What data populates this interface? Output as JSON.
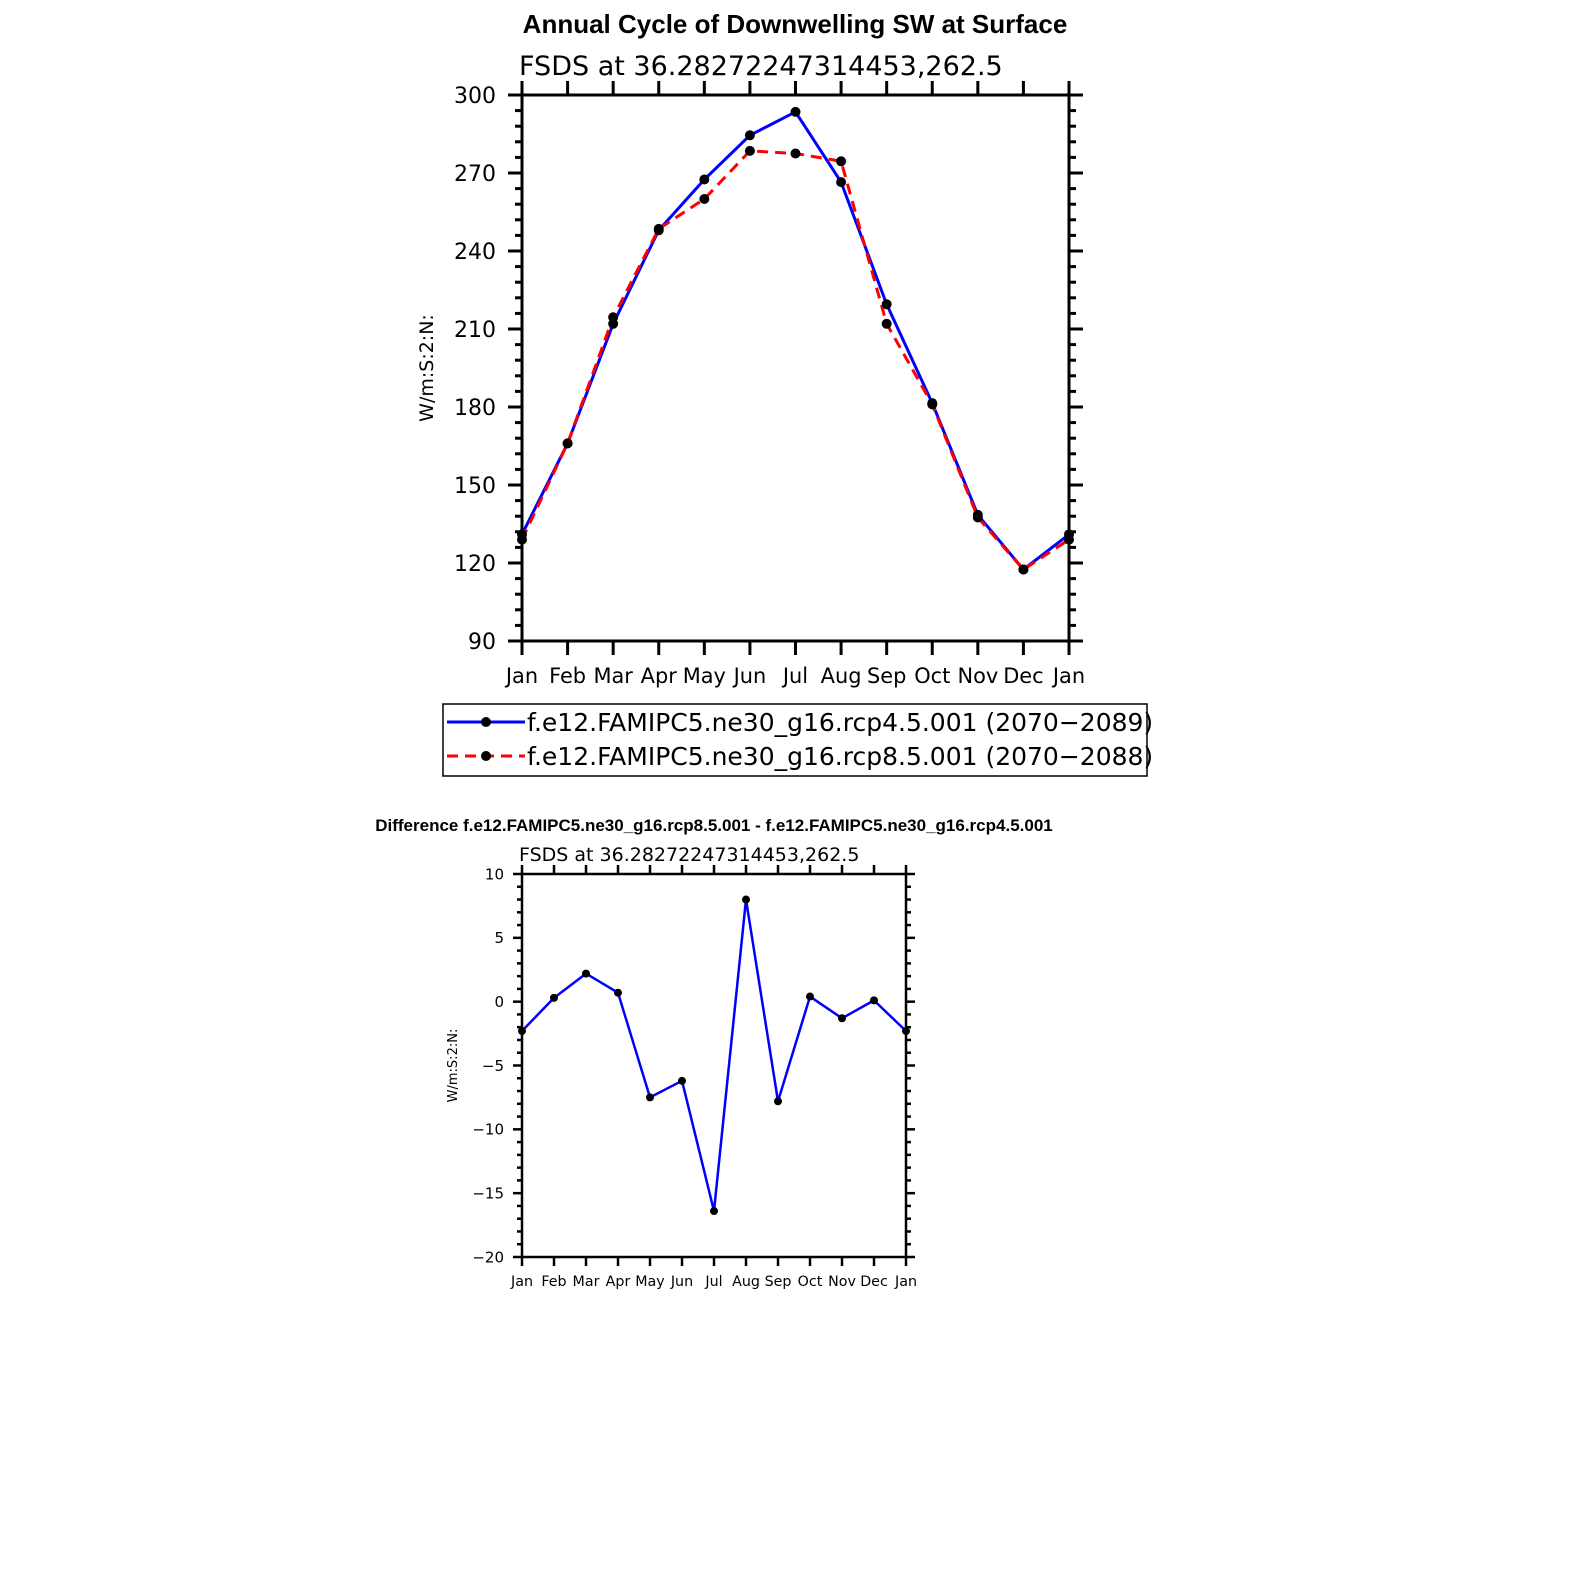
{
  "charts": {
    "top": {
      "title": "Annual Cycle of Downwelling SW at Surface",
      "subtitle": "FSDS at 36.28272247314453,262.5"
    },
    "diff": {
      "title": "Difference f.e12.FAMIPC5.ne30_g16.rcp8.5.001 - f.e12.FAMIPC5.ne30_g16.rcp4.5.001",
      "subtitle": "FSDS at 36.28272247314453,262.5"
    }
  },
  "chart_data": [
    {
      "type": "line",
      "title": "Annual Cycle of Downwelling SW at Surface",
      "subtitle": "FSDS at 36.28272247314453,262.5",
      "ylabel": "W/m:S:2:N:",
      "xlabel": "",
      "categories": [
        "Jan",
        "Feb",
        "Mar",
        "Apr",
        "May",
        "Jun",
        "Jul",
        "Aug",
        "Sep",
        "Oct",
        "Nov",
        "Dec",
        "Jan"
      ],
      "ylim": [
        90,
        300
      ],
      "yticks": [
        90,
        120,
        150,
        180,
        210,
        240,
        270,
        300
      ],
      "grid": false,
      "legend_position": "bottom",
      "series": [
        {
          "name": "f.e12.FAMIPC5.ne30_g16.rcp4.5.001 (2070−2089)",
          "color": "#0000ff",
          "dash": "solid",
          "values": [
            131,
            166,
            212,
            248,
            267.5,
            284.5,
            293.5,
            266.5,
            219.5,
            181.5,
            138.5,
            117.5,
            131
          ]
        },
        {
          "name": "f.e12.FAMIPC5.ne30_g16.rcp8.5.001 (2070−2088)",
          "color": "#ff0000",
          "dash": "dashed",
          "values": [
            129,
            166,
            214.5,
            248.5,
            260,
            278.5,
            277.5,
            274.5,
            212,
            181,
            137.5,
            117.5,
            129
          ]
        }
      ]
    },
    {
      "type": "line",
      "title": "Difference f.e12.FAMIPC5.ne30_g16.rcp8.5.001 - f.e12.FAMIPC5.ne30_g16.rcp4.5.001",
      "subtitle": "FSDS at 36.28272247314453,262.5",
      "ylabel": "W/m:S:2:N:",
      "xlabel": "",
      "categories": [
        "Jan",
        "Feb",
        "Mar",
        "Apr",
        "May",
        "Jun",
        "Jul",
        "Aug",
        "Sep",
        "Oct",
        "Nov",
        "Dec",
        "Jan"
      ],
      "ylim": [
        -20,
        10
      ],
      "yticks": [
        -20,
        -15,
        -10,
        -5,
        0,
        5,
        10
      ],
      "ytick_labels": [
        "−20",
        "−15",
        "−10",
        "−5",
        "0",
        "5",
        "10"
      ],
      "grid": false,
      "series": [
        {
          "color": "#0000ff",
          "dash": "solid",
          "values": [
            -2.3,
            0.3,
            2.2,
            0.7,
            -7.5,
            -6.2,
            -16.4,
            8.0,
            -7.8,
            0.4,
            -1.3,
            0.1,
            -2.3
          ]
        }
      ]
    }
  ]
}
